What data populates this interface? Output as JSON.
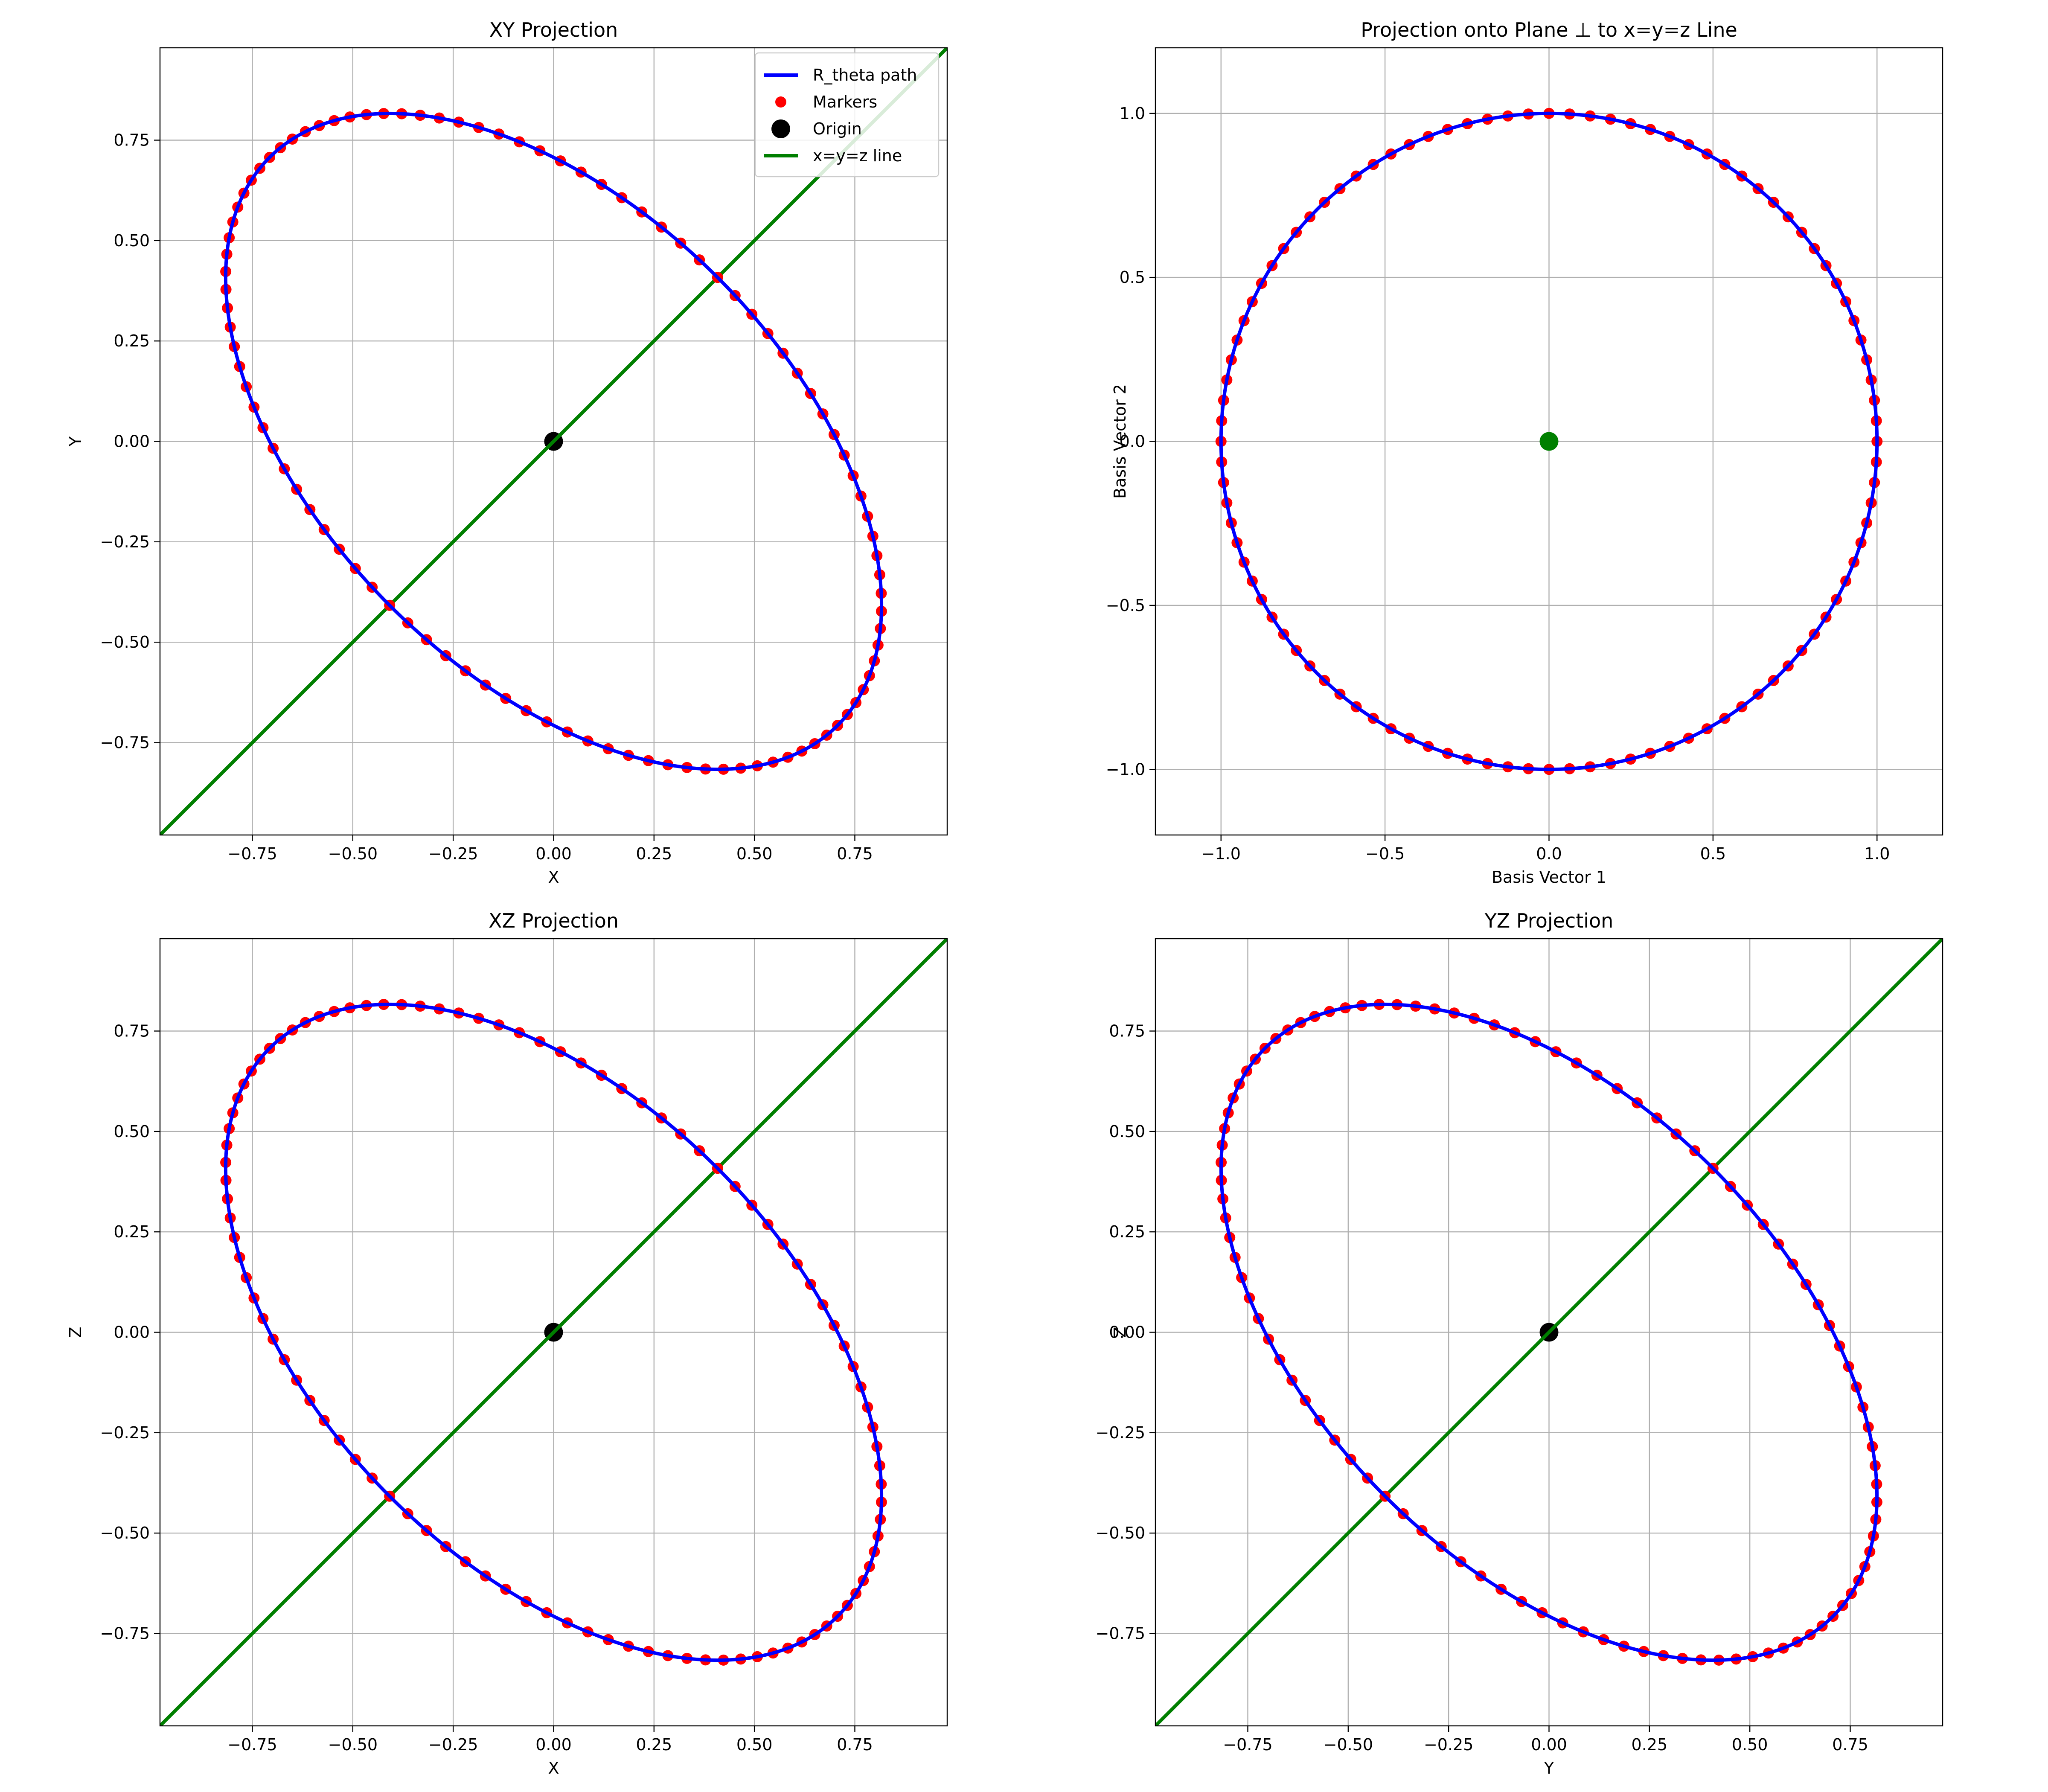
{
  "colors": {
    "path": "#0000ff",
    "markers": "#ff0000",
    "origin_black": "#000000",
    "origin_green": "#008000",
    "diag_line": "#007f00"
  },
  "legend": {
    "placement": "upper-right of XY panel",
    "entries": [
      {
        "label": "R_theta path",
        "type": "line",
        "color": "#0000ff"
      },
      {
        "label": "Markers",
        "type": "dot",
        "color": "#ff0000"
      },
      {
        "label": "Origin",
        "type": "bigdot",
        "color": "#000000"
      },
      {
        "label": "x=y=z line",
        "type": "line",
        "color": "#007f00"
      }
    ]
  },
  "chart_data": [
    {
      "id": "xy",
      "type": "line",
      "title": "XY Projection",
      "xlabel": "X",
      "ylabel": "Y",
      "xlim": [
        -0.98,
        0.98
      ],
      "ylim": [
        -0.98,
        0.98
      ],
      "xticks": [
        -0.75,
        -0.5,
        -0.25,
        0.0,
        0.25,
        0.5,
        0.75
      ],
      "yticks": [
        -0.75,
        -0.5,
        -0.25,
        0.0,
        0.25,
        0.5,
        0.75
      ],
      "xtick_labels": [
        "−0.75",
        "−0.50",
        "−0.25",
        "0.00",
        "0.25",
        "0.50",
        "0.75"
      ],
      "ytick_labels": [
        "−0.75",
        "−0.50",
        "−0.25",
        "0.00",
        "0.25",
        "0.50",
        "0.75"
      ],
      "curve": {
        "kind": "ellipse",
        "center": [
          0,
          0
        ],
        "major": 1.0,
        "minor": 0.57735,
        "angle_deg": -45,
        "n_markers": 100
      },
      "origin": {
        "x": 0,
        "y": 0,
        "color": "#000000"
      },
      "diagonal": true,
      "grid": true,
      "legend": true
    },
    {
      "id": "perp",
      "type": "line",
      "title": "Projection onto Plane ⊥ to x=y=z Line",
      "xlabel": "Basis Vector 1",
      "ylabel": "Basis Vector 2",
      "xlim": [
        -1.2,
        1.2
      ],
      "ylim": [
        -1.2,
        1.2
      ],
      "xticks": [
        -1.0,
        -0.5,
        0.0,
        0.5,
        1.0
      ],
      "yticks": [
        -1.0,
        -0.5,
        0.0,
        0.5,
        1.0
      ],
      "xtick_labels": [
        "−1.0",
        "−0.5",
        "0.0",
        "0.5",
        "1.0"
      ],
      "ytick_labels": [
        "−1.0",
        "−0.5",
        "0.0",
        "0.5",
        "1.0"
      ],
      "curve": {
        "kind": "ellipse",
        "center": [
          0,
          0
        ],
        "major": 1.0,
        "minor": 1.0,
        "angle_deg": 0,
        "n_markers": 100
      },
      "origin": {
        "x": 0,
        "y": 0,
        "color": "#008000"
      },
      "diagonal": false,
      "grid": true,
      "legend": false
    },
    {
      "id": "xz",
      "type": "line",
      "title": "XZ Projection",
      "xlabel": "X",
      "ylabel": "Z",
      "xlim": [
        -0.98,
        0.98
      ],
      "ylim": [
        -0.98,
        0.98
      ],
      "xticks": [
        -0.75,
        -0.5,
        -0.25,
        0.0,
        0.25,
        0.5,
        0.75
      ],
      "yticks": [
        -0.75,
        -0.5,
        -0.25,
        0.0,
        0.25,
        0.5,
        0.75
      ],
      "xtick_labels": [
        "−0.75",
        "−0.50",
        "−0.25",
        "0.00",
        "0.25",
        "0.50",
        "0.75"
      ],
      "ytick_labels": [
        "−0.75",
        "−0.50",
        "−0.25",
        "0.00",
        "0.25",
        "0.50",
        "0.75"
      ],
      "curve": {
        "kind": "ellipse",
        "center": [
          0,
          0
        ],
        "major": 1.0,
        "minor": 0.57735,
        "angle_deg": -45,
        "n_markers": 100
      },
      "origin": {
        "x": 0,
        "y": 0,
        "color": "#000000"
      },
      "diagonal": true,
      "grid": true,
      "legend": false
    },
    {
      "id": "yz",
      "type": "line",
      "title": "YZ Projection",
      "xlabel": "Y",
      "ylabel": "Z",
      "xlim": [
        -0.98,
        0.98
      ],
      "ylim": [
        -0.98,
        0.98
      ],
      "xticks": [
        -0.75,
        -0.5,
        -0.25,
        0.0,
        0.25,
        0.5,
        0.75
      ],
      "yticks": [
        -0.75,
        -0.5,
        -0.25,
        0.0,
        0.25,
        0.5,
        0.75
      ],
      "xtick_labels": [
        "−0.75",
        "−0.50",
        "−0.25",
        "0.00",
        "0.25",
        "0.50",
        "0.75"
      ],
      "ytick_labels": [
        "−0.75",
        "−0.50",
        "−0.25",
        "0.00",
        "0.25",
        "0.50",
        "0.75"
      ],
      "curve": {
        "kind": "ellipse",
        "center": [
          0,
          0
        ],
        "major": 1.0,
        "minor": 0.57735,
        "angle_deg": -45,
        "n_markers": 100
      },
      "origin": {
        "x": 0,
        "y": 0,
        "color": "#000000"
      },
      "diagonal": true,
      "grid": true,
      "legend": false
    }
  ]
}
